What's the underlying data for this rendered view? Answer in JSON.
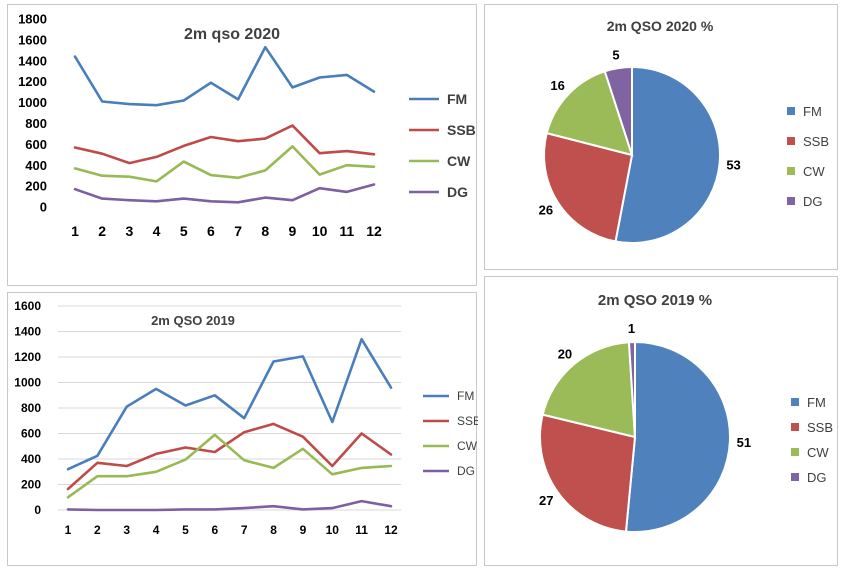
{
  "chart_data": [
    {
      "type": "line",
      "title": "2m qso 2020",
      "categories": [
        "1",
        "2",
        "3",
        "4",
        "5",
        "6",
        "7",
        "8",
        "9",
        "10",
        "11",
        "12"
      ],
      "ylim": [
        0,
        1800
      ],
      "yticks": [
        "0",
        "200",
        "400",
        "600",
        "800",
        "1000",
        "1200",
        "1400",
        "1600",
        "1800"
      ],
      "series": [
        {
          "name": "FM",
          "color": "#4a7ebb",
          "values": [
            1440,
            1010,
            985,
            975,
            1020,
            1190,
            1030,
            1530,
            1145,
            1240,
            1265,
            1105
          ]
        },
        {
          "name": "SSB",
          "color": "#be4b48",
          "values": [
            570,
            510,
            420,
            480,
            585,
            670,
            630,
            655,
            780,
            515,
            535,
            505
          ]
        },
        {
          "name": "CW",
          "color": "#98b954",
          "values": [
            370,
            300,
            290,
            245,
            435,
            305,
            280,
            350,
            580,
            310,
            400,
            385
          ]
        },
        {
          "name": "DG",
          "color": "#7d60a0",
          "values": [
            170,
            80,
            65,
            55,
            80,
            55,
            45,
            90,
            65,
            180,
            145,
            215
          ]
        }
      ],
      "legend": "right",
      "grid": false
    },
    {
      "type": "pie",
      "title": "2m QSO 2020 %",
      "categories": [
        "FM",
        "SSB",
        "CW",
        "DG"
      ],
      "values": [
        53,
        26,
        16,
        5
      ],
      "colors": [
        "#4f81bd",
        "#c0504d",
        "#9bbb59",
        "#8064a2"
      ],
      "legend": "right"
    },
    {
      "type": "line",
      "title": "2m QSO 2019",
      "categories": [
        "1",
        "2",
        "3",
        "4",
        "5",
        "6",
        "7",
        "8",
        "9",
        "10",
        "11",
        "12"
      ],
      "ylim": [
        0,
        1600
      ],
      "yticks": [
        "0",
        "200",
        "400",
        "600",
        "800",
        "1000",
        "1200",
        "1400",
        "1600"
      ],
      "series": [
        {
          "name": "FM",
          "color": "#4a7ebb",
          "values": [
            320,
            425,
            810,
            950,
            820,
            900,
            720,
            1165,
            1205,
            690,
            1340,
            960
          ]
        },
        {
          "name": "SSB",
          "color": "#be4b48",
          "values": [
            165,
            370,
            345,
            440,
            490,
            455,
            610,
            675,
            575,
            345,
            600,
            435
          ]
        },
        {
          "name": "CW",
          "color": "#98b954",
          "values": [
            100,
            265,
            265,
            300,
            395,
            590,
            390,
            330,
            480,
            280,
            330,
            345
          ]
        },
        {
          "name": "DG",
          "color": "#7d60a0",
          "values": [
            5,
            0,
            0,
            0,
            5,
            5,
            15,
            30,
            5,
            15,
            70,
            30
          ]
        }
      ],
      "legend": "right",
      "grid": true
    },
    {
      "type": "pie",
      "title": "2m QSO 2019 %",
      "categories": [
        "FM",
        "SSB",
        "CW",
        "DG"
      ],
      "values": [
        51,
        27,
        20,
        1
      ],
      "colors": [
        "#4f81bd",
        "#c0504d",
        "#9bbb59",
        "#8064a2"
      ],
      "legend": "right"
    }
  ]
}
